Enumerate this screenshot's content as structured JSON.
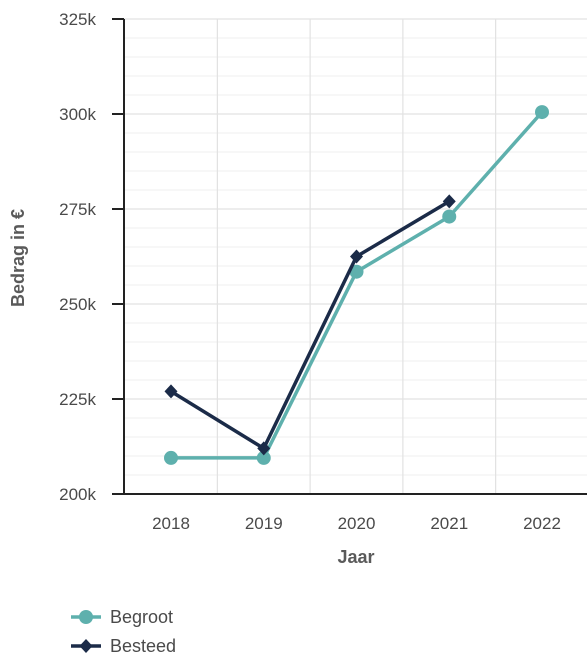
{
  "chart_data": {
    "type": "line",
    "title": "",
    "xlabel": "Jaar",
    "ylabel": "Bedrag in €",
    "categories": [
      "2018",
      "2019",
      "2020",
      "2021",
      "2022"
    ],
    "ylim": [
      200000,
      325000
    ],
    "yticks": [
      200000,
      225000,
      250000,
      275000,
      300000,
      325000
    ],
    "ytick_labels": [
      "200k",
      "225k",
      "250k",
      "275k",
      "300k",
      "325k"
    ],
    "grid": true,
    "legend_position": "bottom-left",
    "series": [
      {
        "name": "Begroot",
        "values": [
          209500,
          209500,
          258500,
          273000,
          300500
        ],
        "color": "#5eb0ad",
        "marker": "circle"
      },
      {
        "name": "Besteed",
        "values": [
          227000,
          212000,
          262500,
          277000,
          null
        ],
        "color": "#1b2b48",
        "marker": "diamond"
      }
    ]
  }
}
